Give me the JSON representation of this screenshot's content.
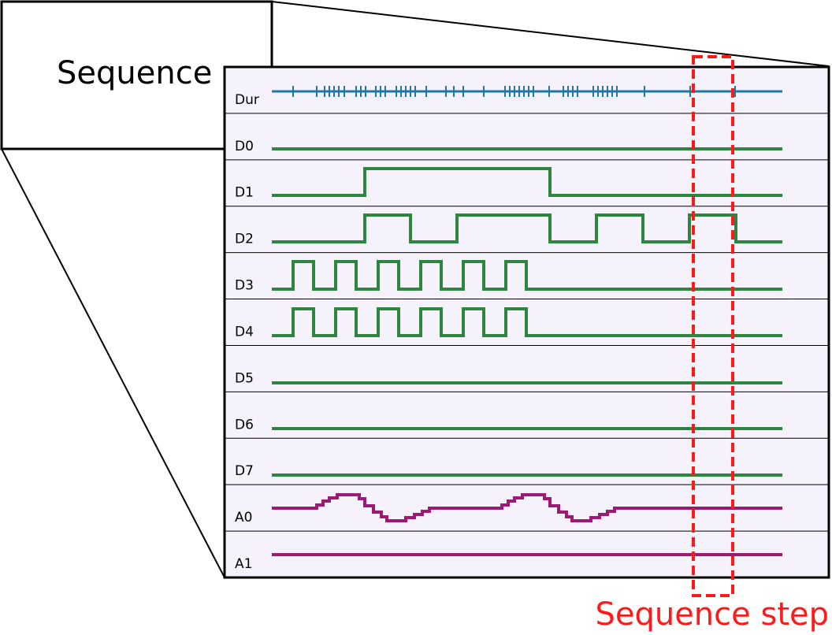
{
  "title": "Sequence",
  "rows": [
    "Dur",
    "D0",
    "D1",
    "D2",
    "D3",
    "D4",
    "D5",
    "D6",
    "D7",
    "A0",
    "A1"
  ],
  "annotation": "Sequence step"
}
